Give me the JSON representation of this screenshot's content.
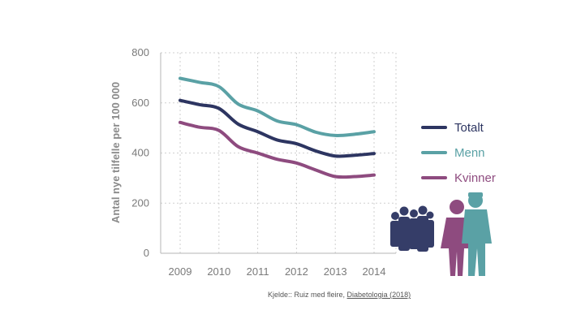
{
  "chart_data": {
    "type": "line",
    "categories": [
      "2009",
      "2010",
      "2011",
      "2012",
      "2013",
      "2014"
    ],
    "x": [
      2009,
      2010,
      2011,
      2012,
      2013,
      2014
    ],
    "ylabel": "Antal nye tilfelle per 100 000",
    "xlabel": "",
    "title": "",
    "ylim": [
      0,
      800
    ],
    "yticks": [
      "0",
      "200",
      "400",
      "600",
      "800"
    ],
    "grid": true,
    "legend_position": "right",
    "series": [
      {
        "name": "Totalt",
        "color": "#2d3561",
        "points": [
          [
            2009,
            610
          ],
          [
            2009.5,
            593
          ],
          [
            2010,
            578
          ],
          [
            2010.5,
            515
          ],
          [
            2011,
            485
          ],
          [
            2011.5,
            452
          ],
          [
            2012,
            437
          ],
          [
            2012.5,
            408
          ],
          [
            2013,
            388
          ],
          [
            2013.5,
            391
          ],
          [
            2014,
            398
          ]
        ]
      },
      {
        "name": "Menn",
        "color": "#5aa1a5",
        "points": [
          [
            2009,
            698
          ],
          [
            2009.5,
            682
          ],
          [
            2010,
            665
          ],
          [
            2010.5,
            595
          ],
          [
            2011,
            568
          ],
          [
            2011.5,
            528
          ],
          [
            2012,
            513
          ],
          [
            2012.5,
            483
          ],
          [
            2013,
            470
          ],
          [
            2013.5,
            475
          ],
          [
            2014,
            485
          ]
        ]
      },
      {
        "name": "Kvinner",
        "color": "#8e4b7f",
        "points": [
          [
            2009,
            522
          ],
          [
            2009.5,
            503
          ],
          [
            2010,
            490
          ],
          [
            2010.5,
            425
          ],
          [
            2011,
            400
          ],
          [
            2011.5,
            375
          ],
          [
            2012,
            360
          ],
          [
            2012.5,
            332
          ],
          [
            2013,
            306
          ],
          [
            2013.5,
            306
          ],
          [
            2014,
            312
          ]
        ]
      }
    ]
  },
  "source": {
    "prefix": "Kjelde:: Ruiz med fleire, ",
    "link": "Diabetologia (2018)"
  },
  "icons": {
    "crowd": "people-crowd-icon",
    "woman": "woman-icon",
    "man": "man-icon"
  }
}
